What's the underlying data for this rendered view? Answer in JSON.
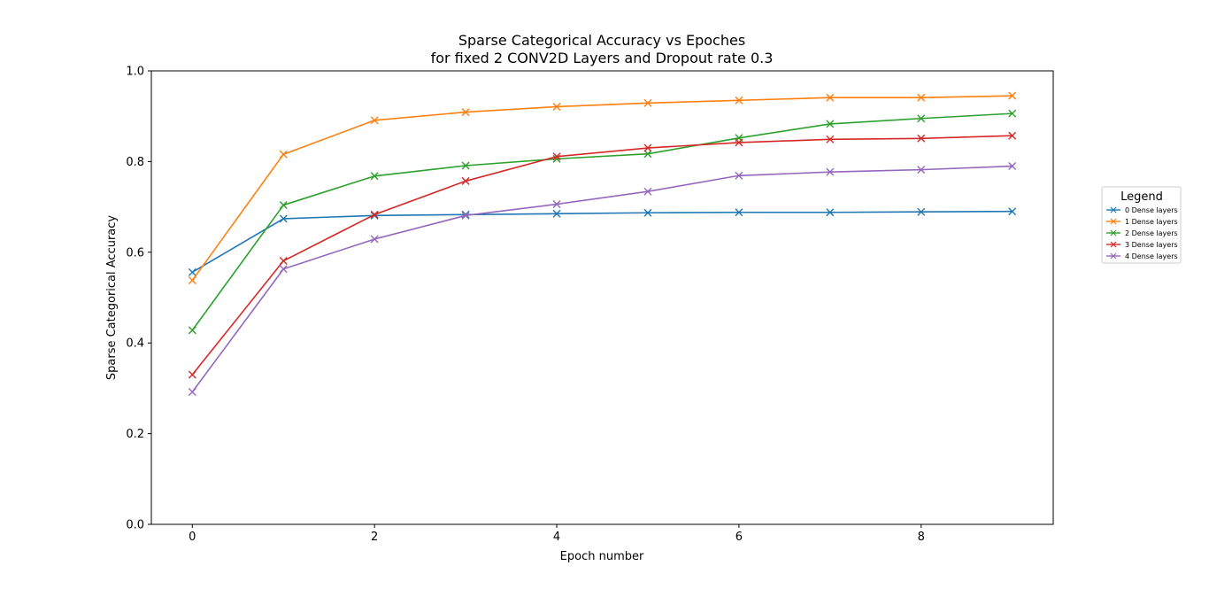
{
  "chart_data": {
    "type": "line",
    "title": "Sparse Categorical Accuracy vs Epoches",
    "subtitle": "for fixed 2 CONV2D Layers and Dropout rate 0.3",
    "xlabel": "Epoch number",
    "ylabel": "Sparse Categorical Accuracy",
    "xlim": [
      -0.45,
      9.45
    ],
    "ylim": [
      0.0,
      1.0
    ],
    "xticks": [
      0,
      2,
      4,
      6,
      8
    ],
    "yticks": [
      0.0,
      0.2,
      0.4,
      0.6,
      0.8,
      1.0
    ],
    "grid": false,
    "marker": "x",
    "legend": {
      "title": "Legend",
      "placement": "outside-right"
    },
    "x": [
      0,
      1,
      2,
      3,
      4,
      5,
      6,
      7,
      8,
      9
    ],
    "series": [
      {
        "name": "0 Dense layers",
        "color": "#1f77b4",
        "values": [
          0.556,
          0.674,
          0.681,
          0.683,
          0.685,
          0.687,
          0.688,
          0.688,
          0.689,
          0.69
        ]
      },
      {
        "name": "1 Dense layers",
        "color": "#ff7f0e",
        "values": [
          0.538,
          0.816,
          0.891,
          0.909,
          0.921,
          0.929,
          0.935,
          0.941,
          0.941,
          0.945
        ]
      },
      {
        "name": "2 Dense layers",
        "color": "#2ca02c",
        "values": [
          0.428,
          0.704,
          0.768,
          0.791,
          0.806,
          0.817,
          0.852,
          0.883,
          0.895,
          0.906
        ]
      },
      {
        "name": "3 Dense layers",
        "color": "#d62728",
        "values": [
          0.33,
          0.581,
          0.683,
          0.757,
          0.811,
          0.83,
          0.842,
          0.849,
          0.851,
          0.857
        ]
      },
      {
        "name": "4 Dense layers",
        "color": "#9467bd",
        "values": [
          0.292,
          0.563,
          0.629,
          0.681,
          0.706,
          0.734,
          0.769,
          0.777,
          0.782,
          0.79
        ]
      }
    ]
  }
}
